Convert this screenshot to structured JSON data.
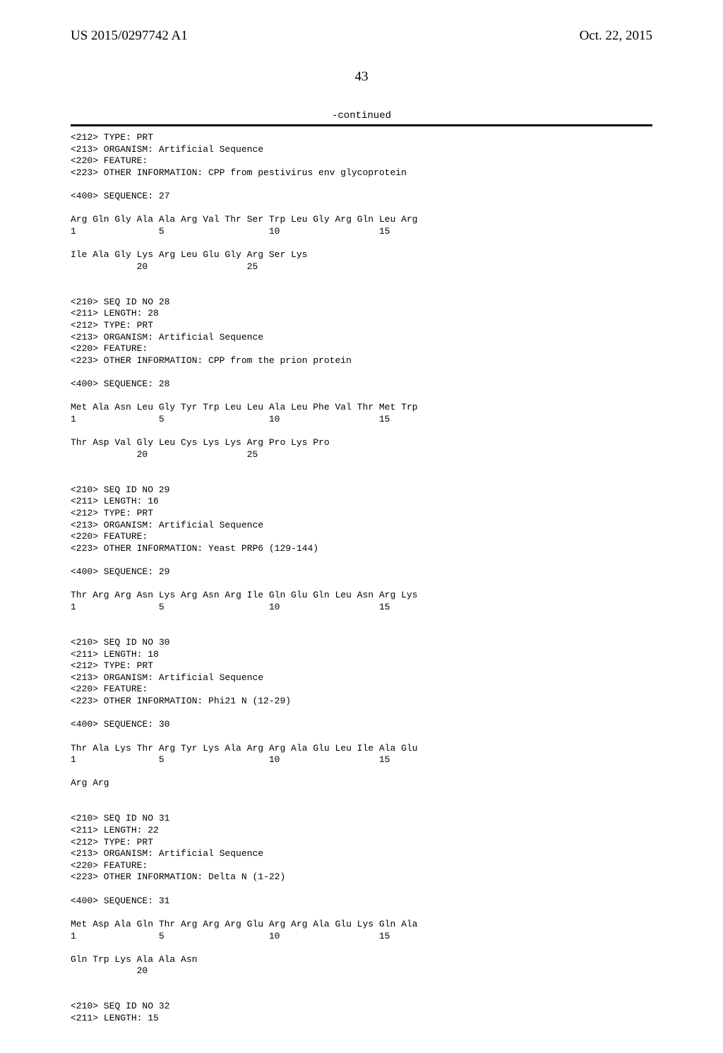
{
  "header": {
    "pub_number": "US 2015/0297742 A1",
    "pub_date": "Oct. 22, 2015"
  },
  "page_number": "43",
  "continued_label": "-continued",
  "sequence_text": "<212> TYPE: PRT\n<213> ORGANISM: Artificial Sequence\n<220> FEATURE:\n<223> OTHER INFORMATION: CPP from pestivirus env glycoprotein\n\n<400> SEQUENCE: 27\n\nArg Gln Gly Ala Ala Arg Val Thr Ser Trp Leu Gly Arg Gln Leu Arg\n1               5                   10                  15\n\nIle Ala Gly Lys Arg Leu Glu Gly Arg Ser Lys\n            20                  25\n\n\n<210> SEQ ID NO 28\n<211> LENGTH: 28\n<212> TYPE: PRT\n<213> ORGANISM: Artificial Sequence\n<220> FEATURE:\n<223> OTHER INFORMATION: CPP from the prion protein\n\n<400> SEQUENCE: 28\n\nMet Ala Asn Leu Gly Tyr Trp Leu Leu Ala Leu Phe Val Thr Met Trp\n1               5                   10                  15\n\nThr Asp Val Gly Leu Cys Lys Lys Arg Pro Lys Pro\n            20                  25\n\n\n<210> SEQ ID NO 29\n<211> LENGTH: 16\n<212> TYPE: PRT\n<213> ORGANISM: Artificial Sequence\n<220> FEATURE:\n<223> OTHER INFORMATION: Yeast PRP6 (129-144)\n\n<400> SEQUENCE: 29\n\nThr Arg Arg Asn Lys Arg Asn Arg Ile Gln Glu Gln Leu Asn Arg Lys\n1               5                   10                  15\n\n\n<210> SEQ ID NO 30\n<211> LENGTH: 18\n<212> TYPE: PRT\n<213> ORGANISM: Artificial Sequence\n<220> FEATURE:\n<223> OTHER INFORMATION: Phi21 N (12-29)\n\n<400> SEQUENCE: 30\n\nThr Ala Lys Thr Arg Tyr Lys Ala Arg Arg Ala Glu Leu Ile Ala Glu\n1               5                   10                  15\n\nArg Arg\n\n\n<210> SEQ ID NO 31\n<211> LENGTH: 22\n<212> TYPE: PRT\n<213> ORGANISM: Artificial Sequence\n<220> FEATURE:\n<223> OTHER INFORMATION: Delta N (1-22)\n\n<400> SEQUENCE: 31\n\nMet Asp Ala Gln Thr Arg Arg Arg Glu Arg Arg Ala Glu Lys Gln Ala\n1               5                   10                  15\n\nGln Trp Lys Ala Ala Asn\n            20\n\n\n<210> SEQ ID NO 32\n<211> LENGTH: 15"
}
